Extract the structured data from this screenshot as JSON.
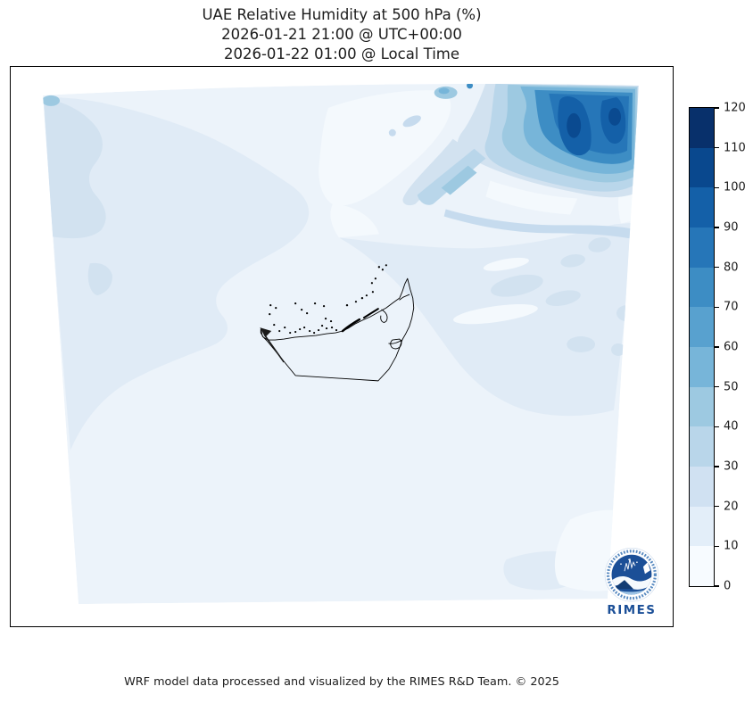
{
  "title": {
    "line1": "UAE Relative Humidity at 500 hPa (%)",
    "line2": "2026-01-21 21:00 @ UTC+00:00",
    "line3": "2026-01-22 01:00 @ Local Time"
  },
  "footer": "WRF model data processed and visualized by the RIMES R&D Team. © 2025",
  "logo": {
    "label": "RIMES"
  },
  "colorbar": {
    "min": 0,
    "max": 120,
    "ticks": [
      0,
      10,
      20,
      30,
      40,
      50,
      60,
      70,
      80,
      90,
      100,
      110,
      120
    ],
    "colors": [
      "#f7fbff",
      "#e3eef9",
      "#d0e1f2",
      "#b9d6ea",
      "#9dc9e1",
      "#77b5d9",
      "#58a1cf",
      "#3d8dc4",
      "#2676b8",
      "#1460a8",
      "#09488e",
      "#08306b"
    ]
  },
  "chart_data": {
    "type": "filled_contour_map",
    "title": "UAE Relative Humidity at 500 hPa (%)",
    "variable": "Relative Humidity",
    "level": "500 hPa",
    "units": "%",
    "region": "UAE (WRF model domain)",
    "time_utc": "2026-01-21 21:00 @ UTC+00:00",
    "time_local": "2026-01-22 01:00 @ Local Time",
    "scale_ticks": [
      0,
      10,
      20,
      30,
      40,
      50,
      60,
      70,
      80,
      90,
      100,
      110,
      120
    ],
    "scale_colors": [
      "#f7fbff",
      "#e3eef9",
      "#d0e1f2",
      "#b9d6ea",
      "#9dc9e1",
      "#77b5d9",
      "#58a1cf",
      "#3d8dc4",
      "#2676b8",
      "#1460a8",
      "#09488e",
      "#08306b"
    ],
    "legend_position": "right colorbar",
    "features": [
      {
        "area": "northeast corner of domain",
        "value_range_pct": "60-110",
        "note": "dark blue humidity maximum"
      },
      {
        "area": "diagonal band center-east toward right edge",
        "value_range_pct": "10-30"
      },
      {
        "area": "northwest / west of domain",
        "value_range_pct": "10-30"
      },
      {
        "area": "most of central and southern domain incl. UAE",
        "value_range_pct": "0-20"
      }
    ]
  }
}
